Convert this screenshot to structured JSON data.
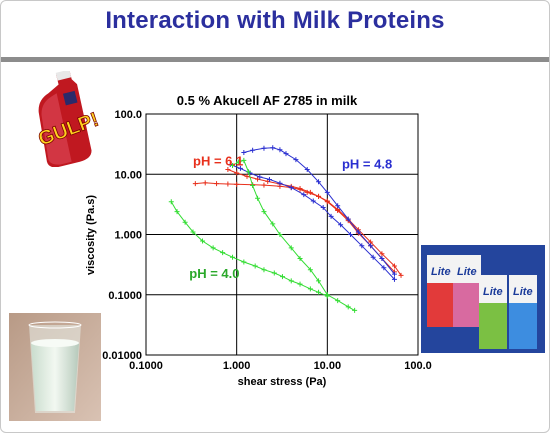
{
  "slide": {
    "title": "Interaction with Milk Proteins"
  },
  "images": {
    "bottle_label": "GULP!",
    "carton_label": "Lite"
  },
  "chart_data": {
    "type": "line",
    "title": "0.5 % Akucell AF 2785 in milk",
    "xlabel": "shear stress (Pa)",
    "ylabel": "viscosity (Pa.s)",
    "x_scale": "log",
    "y_scale": "log",
    "xlim": [
      0.1,
      100.0
    ],
    "ylim": [
      0.01,
      100.0
    ],
    "x_ticks": [
      "0.1000",
      "1.000",
      "10.00",
      "100.0"
    ],
    "y_ticks": [
      "100.0",
      "10.00",
      "1.000",
      "0.1000",
      "0.01000"
    ],
    "grid": true,
    "legend": "none",
    "series": [
      {
        "name": "pH = 6.1",
        "color": "#e8301c",
        "x": [
          0.35,
          0.45,
          0.6,
          0.8,
          1.0,
          1.5,
          2.0,
          3.0,
          4.0,
          5.0,
          6.0,
          8.0,
          10.0,
          13.0,
          17.0,
          22.0,
          30.0,
          40.0,
          55.0,
          65.0
        ],
        "y": [
          7.0,
          7.2,
          7.0,
          6.9,
          6.8,
          6.7,
          6.6,
          6.3,
          6.0,
          5.6,
          5.0,
          4.3,
          3.6,
          2.6,
          1.8,
          1.2,
          0.75,
          0.48,
          0.3,
          0.21
        ]
      },
      {
        "name": "pH = 6.1",
        "color": "#e8301c",
        "x": [
          0.8,
          1.0,
          1.3,
          1.7,
          2.2,
          3.0,
          4.0,
          5.0,
          6.5,
          8.0,
          10.0,
          13.0,
          17.0,
          22.0,
          30.0,
          40.0,
          55.0
        ],
        "y": [
          12.0,
          10.5,
          9.2,
          8.3,
          7.6,
          6.9,
          6.3,
          5.8,
          5.0,
          4.3,
          3.5,
          2.5,
          1.7,
          1.05,
          0.65,
          0.4,
          0.24
        ]
      },
      {
        "name": "pH = 4.8",
        "color": "#2a2fd0",
        "x": [
          1.2,
          1.5,
          2.0,
          2.5,
          3.0,
          3.5,
          4.5,
          6.0,
          8.0,
          10.0,
          13.0,
          17.0,
          22.0,
          30.0,
          40.0,
          55.0
        ],
        "y": [
          23.0,
          25.0,
          27.0,
          27.5,
          25.5,
          22.0,
          17.5,
          12.0,
          7.5,
          5.0,
          3.0,
          1.8,
          1.1,
          0.65,
          0.4,
          0.22
        ]
      },
      {
        "name": "pH = 4.8",
        "color": "#2a2fd0",
        "x": [
          0.85,
          1.1,
          1.4,
          1.8,
          2.3,
          3.0,
          4.0,
          5.5,
          7.0,
          9.0,
          11.0,
          14.0,
          18.0,
          24.0,
          32.0,
          42.0,
          55.0
        ],
        "y": [
          14.5,
          12.5,
          10.5,
          9.0,
          8.2,
          7.1,
          6.0,
          4.6,
          3.6,
          2.8,
          2.0,
          1.45,
          1.0,
          0.65,
          0.42,
          0.28,
          0.18
        ]
      },
      {
        "name": "pH = 4.0",
        "color": "#33dd33",
        "x": [
          0.19,
          0.22,
          0.27,
          0.33,
          0.42,
          0.55,
          0.7,
          0.9,
          1.2,
          1.6,
          2.0,
          2.6,
          3.2,
          4.0,
          5.0,
          6.5,
          8.0,
          10.0
        ],
        "y": [
          3.5,
          2.4,
          1.6,
          1.1,
          0.78,
          0.6,
          0.5,
          0.42,
          0.35,
          0.3,
          0.26,
          0.23,
          0.2,
          0.17,
          0.15,
          0.125,
          0.11,
          0.095
        ]
      },
      {
        "name": "pH = 4.0",
        "color": "#33dd33",
        "x": [
          0.9,
          1.05,
          1.2,
          1.35,
          1.5,
          1.7,
          2.0,
          2.5,
          3.0,
          4.0,
          5.0,
          6.5,
          8.0,
          10.0,
          13.0,
          17.0,
          20.0
        ],
        "y": [
          14.0,
          16.0,
          17.0,
          11.0,
          6.5,
          4.0,
          2.4,
          1.5,
          1.0,
          0.6,
          0.4,
          0.26,
          0.17,
          0.1,
          0.08,
          0.063,
          0.055
        ]
      }
    ],
    "annotations": [
      {
        "text": "pH = 6.1",
        "color": "#e8301c",
        "x": 0.33,
        "y": 14.0
      },
      {
        "text": "pH = 4.8",
        "color": "#2a2fd0",
        "x": 14.5,
        "y": 12.5
      },
      {
        "text": "pH = 4.0",
        "color": "#2aa82a",
        "x": 0.3,
        "y": 0.19
      }
    ]
  }
}
